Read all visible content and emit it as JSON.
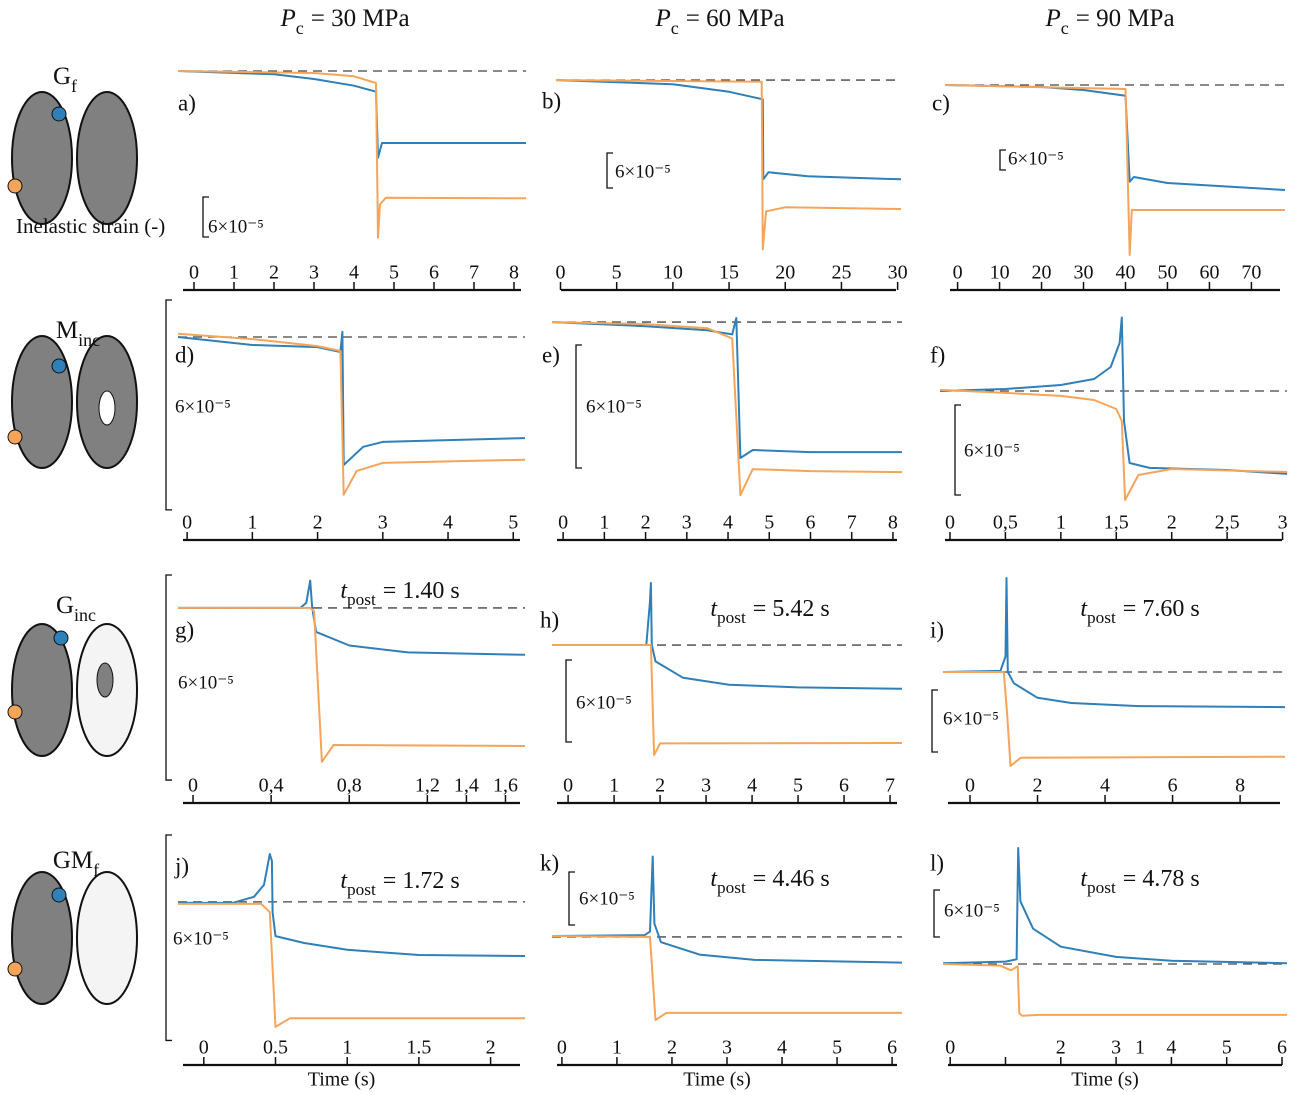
{
  "column_headers": [
    {
      "symbol": "P",
      "subscript": "c",
      "text": "= 30 MPa"
    },
    {
      "symbol": "P",
      "subscript": "c",
      "text": "= 60 MPa"
    },
    {
      "symbol": "P",
      "subscript": "c",
      "text": "= 90 MPa"
    }
  ],
  "row_labels": [
    {
      "symbol": "G",
      "subscript": "f"
    },
    {
      "symbol": "M",
      "subscript": "inc"
    },
    {
      "symbol": "G",
      "subscript": "inc"
    },
    {
      "symbol": "GM",
      "subscript": "f"
    }
  ],
  "y_label": "Inelastic strain (-)",
  "x_label": "Time (s)",
  "chart_data": [
    {
      "type": "line",
      "label": "a)",
      "xlim": [
        -0.4,
        8.3
      ],
      "xticks": [
        0,
        1,
        2,
        3,
        4,
        5,
        6,
        7,
        8
      ],
      "ylim": [
        -0.000291,
        2.4e-05
      ],
      "reference_line": 0,
      "scale_bar": {
        "value": 6e-05,
        "label": "6×10⁻⁵"
      },
      "series": [
        {
          "color": "#2f7fb8",
          "x": [
            -0.4,
            2,
            3,
            4,
            4.55,
            4.6,
            4.7,
            6,
            8.3
          ],
          "values": [
            0,
            -5e-06,
            -1.2e-05,
            -2.2e-05,
            -3.1e-05,
            -0.00013,
            -0.000108,
            -0.000108,
            -0.000108
          ]
        },
        {
          "color": "#f5a55a",
          "x": [
            -0.4,
            3,
            4,
            4.55,
            4.6,
            4.65,
            4.8,
            8.3
          ],
          "values": [
            0,
            -3e-06,
            -8e-06,
            -1.8e-05,
            -0.00025,
            -0.0002,
            -0.00019,
            -0.000191
          ]
        }
      ]
    },
    {
      "type": "line",
      "label": "b)",
      "xlim": [
        -0.4,
        30.3
      ],
      "xticks": [
        0,
        5,
        10,
        15,
        20,
        25,
        30
      ],
      "ylim": [
        -0.000317,
        4.3e-05
      ],
      "reference_line": 0,
      "scale_bar": {
        "value": 6e-05,
        "label": "6×10⁻⁵"
      },
      "series": [
        {
          "color": "#2f7fb8",
          "x": [
            -0.4,
            10,
            15,
            18,
            18.05,
            18.5,
            22,
            30.3
          ],
          "values": [
            0,
            -7e-06,
            -2e-05,
            -3.3e-05,
            -0.00017,
            -0.000158,
            -0.000165,
            -0.00017
          ]
        },
        {
          "color": "#f5a55a",
          "x": [
            -0.4,
            17.9,
            18,
            18.3,
            20,
            30.3
          ],
          "values": [
            0,
            -3e-06,
            -0.00029,
            -0.000225,
            -0.000218,
            -0.000221
          ]
        }
      ]
    },
    {
      "type": "line",
      "label": "c)",
      "xlim": [
        -3,
        78
      ],
      "xticks": [
        0,
        10,
        20,
        30,
        40,
        50,
        60,
        70
      ],
      "ylim": [
        -0.00054,
        9e-05
      ],
      "reference_line": 0,
      "scale_bar": {
        "value": 6e-05,
        "label": "6×10⁻⁵"
      },
      "series": [
        {
          "color": "#2f7fb8",
          "x": [
            -3,
            20,
            30,
            40,
            41,
            42,
            50,
            78
          ],
          "values": [
            0,
            -6e-06,
            -1.5e-05,
            -3.2e-05,
            -0.00029,
            -0.000276,
            -0.000294,
            -0.000315
          ]
        },
        {
          "color": "#f5a55a",
          "x": [
            -3,
            40,
            41,
            41.5,
            78
          ],
          "values": [
            0,
            -1.2e-05,
            -0.00051,
            -0.000375,
            -0.000375
          ]
        }
      ]
    },
    {
      "type": "line",
      "label": "d)",
      "xlim": [
        -0.14,
        5.18
      ],
      "xticks": [
        0,
        1,
        2,
        3,
        4,
        5
      ],
      "ylim": [
        -5.09e-05,
        1.2e-05
      ],
      "reference_line": 0,
      "scale_bar": {
        "value": 6e-05,
        "label": "6×10⁻⁵"
      },
      "series": [
        {
          "color": "#2f7fb8",
          "x": [
            -0.14,
            1,
            2,
            2.35,
            2.38,
            2.4,
            2.7,
            3,
            5.18
          ],
          "values": [
            0,
            -2.3e-06,
            -2.9e-06,
            -4.3e-06,
            1.5e-06,
            -3.66e-05,
            -3.14e-05,
            -3e-05,
            -2.89e-05
          ]
        },
        {
          "color": "#f5a55a",
          "x": [
            -0.14,
            1,
            2,
            2.35,
            2.4,
            2.6,
            3,
            5.18
          ],
          "values": [
            9e-07,
            -6e-07,
            -2.6e-06,
            -4e-06,
            -4.51e-05,
            -3.83e-05,
            -3.6e-05,
            -3.51e-05
          ]
        }
      ]
    },
    {
      "type": "line",
      "label": "e)",
      "xlim": [
        -0.27,
        8.22
      ],
      "xticks": [
        0,
        1,
        2,
        3,
        4,
        5,
        6,
        7,
        8
      ],
      "ylim": [
        -9.41e-05,
        1.32e-05
      ],
      "reference_line": 0,
      "scale_bar": {
        "value": 6e-05,
        "label": "6×10⁻⁵"
      },
      "series": [
        {
          "color": "#2f7fb8",
          "x": [
            -0.27,
            2,
            3.5,
            4.1,
            4.2,
            4.3,
            4.6,
            6,
            8.22
          ],
          "values": [
            0,
            -2e-06,
            -4e-06,
            -6e-06,
            2e-06,
            -6.63e-05,
            -6.24e-05,
            -6.34e-05,
            -6.34e-05
          ]
        },
        {
          "color": "#f5a55a",
          "x": [
            -0.27,
            2,
            3.5,
            4.1,
            4.3,
            4.6,
            6,
            8.22
          ],
          "values": [
            0,
            -1e-06,
            -3e-06,
            -8e-06,
            -8.44e-05,
            -7.17e-05,
            -7.27e-05,
            -7.32e-05
          ]
        }
      ]
    },
    {
      "type": "line",
      "label": "f)",
      "xlim": [
        -0.09,
        3.04
      ],
      "xticks": [
        0,
        {
          "value": 0.5,
          "label": "0,5"
        },
        1,
        {
          "value": 1.5,
          "label": "1,5"
        },
        2,
        {
          "value": 2.5,
          "label": "2,5"
        },
        3
      ],
      "ylim": [
        -8.27e-05,
        6.4e-05
      ],
      "reference_line": 0,
      "scale_bar": {
        "value": 6e-05,
        "label": "6×10⁻⁵"
      },
      "series": [
        {
          "color": "#2f7fb8",
          "x": [
            -0.09,
            0.5,
            1,
            1.3,
            1.45,
            1.53,
            1.55,
            1.57,
            1.62,
            1.8,
            2.5,
            3.04
          ],
          "values": [
            0,
            1.3e-06,
            4e-06,
            8e-06,
            1.6e-05,
            3.2e-05,
            4.9e-05,
            -2e-05,
            -4.8e-05,
            -5.13e-05,
            -5.27e-05,
            -5.53e-05
          ]
        },
        {
          "color": "#f5a55a",
          "x": [
            -0.09,
            0.5,
            1,
            1.3,
            1.5,
            1.55,
            1.58,
            1.7,
            2,
            3.04
          ],
          "values": [
            7e-07,
            -1.3e-06,
            -3.3e-06,
            -6e-06,
            -1.2e-05,
            -2e-05,
            -7.27e-05,
            -5.6e-05,
            -5.2e-05,
            -5.4e-05
          ]
        }
      ]
    },
    {
      "type": "line",
      "label": "g)",
      "xlim": [
        -0.077,
        1.7
      ],
      "xticks": [
        0,
        {
          "value": 0.4,
          "label": "0,4"
        },
        {
          "value": 0.8,
          "label": "0,8"
        },
        {
          "value": 1.2,
          "label": "1,2"
        },
        {
          "value": 1.4,
          "label": "1,4"
        },
        {
          "value": 1.6,
          "label": "1,6"
        }
      ],
      "ylim": [
        -5.18e-05,
        1.11e-05
      ],
      "reference_line": 0,
      "scale_bar": {
        "value": 6e-05,
        "label": "6×10⁻⁵"
      },
      "annotation": {
        "symbol": "t",
        "subscript": "post",
        "text": "= 1.40 s"
      },
      "series": [
        {
          "color": "#2f7fb8",
          "x": [
            -0.077,
            0.55,
            0.58,
            0.6,
            0.61,
            0.63,
            0.8,
            1.1,
            1.7
          ],
          "values": [
            0,
            0,
            1.5e-06,
            8e-06,
            0,
            -7e-06,
            -1.1e-05,
            -1.3e-05,
            -1.37e-05
          ]
        },
        {
          "color": "#f5a55a",
          "x": [
            -0.077,
            0.6,
            0.62,
            0.66,
            0.72,
            1.7
          ],
          "values": [
            0,
            0,
            -1e-06,
            -4.5e-05,
            -4.01e-05,
            -4.04e-05
          ]
        }
      ]
    },
    {
      "type": "line",
      "label": "h)",
      "xlim": [
        -0.35,
        7.26
      ],
      "xticks": [
        0,
        1,
        2,
        3,
        4,
        5,
        6,
        7
      ],
      "ylim": [
        -0.0001024,
        5.49e-05
      ],
      "reference_line": 0,
      "scale_bar": {
        "value": 6e-05,
        "label": "6×10⁻⁵"
      },
      "annotation": {
        "symbol": "t",
        "subscript": "post",
        "text": "= 5.42 s"
      },
      "series": [
        {
          "color": "#2f7fb8",
          "x": [
            -0.35,
            1.7,
            1.78,
            1.8,
            1.82,
            1.9,
            2.5,
            3.5,
            5,
            7.26
          ],
          "values": [
            0,
            0,
            3.2e-05,
            4.54e-05,
            0,
            -1.2e-05,
            -2.4e-05,
            -2.9e-05,
            -3.1e-05,
            -3.2e-05
          ]
        },
        {
          "color": "#f5a55a",
          "x": [
            -0.35,
            1.8,
            1.87,
            2.0,
            7.26
          ],
          "values": [
            0,
            0,
            -8.05e-05,
            -7.2e-05,
            -7.17e-05
          ]
        }
      ]
    },
    {
      "type": "line",
      "label": "i)",
      "xlim": [
        -0.8,
        9.33
      ],
      "xticks": [
        0,
        2,
        4,
        6,
        8
      ],
      "ylim": [
        -0.0001094,
        9.87e-05
      ],
      "reference_line": 0,
      "scale_bar": {
        "value": 6e-05,
        "label": "6×10⁻⁵"
      },
      "annotation": {
        "symbol": "t",
        "subscript": "post",
        "text": "= 7.60 s"
      },
      "series": [
        {
          "color": "#2f7fb8",
          "x": [
            -0.8,
            0.9,
            1.05,
            1.08,
            1.12,
            1.3,
            2,
            3,
            5,
            9.33
          ],
          "values": [
            0,
            1e-06,
            1.5e-05,
            9.1e-05,
            0,
            -1.1e-05,
            -2.5e-05,
            -3e-05,
            -3.3e-05,
            -3.4e-05
          ]
        },
        {
          "color": "#f5a55a",
          "x": [
            -0.8,
            1.0,
            1.1,
            1.2,
            1.5,
            9.33
          ],
          "values": [
            0,
            0,
            -4e-05,
            -9.1e-05,
            -8.3e-05,
            -8.2e-05
          ]
        }
      ]
    },
    {
      "type": "line",
      "label": "j)",
      "xlim": [
        -0.18,
        2.24
      ],
      "xticks": [
        0,
        0.5,
        1,
        1.5,
        2
      ],
      "ylim": [
        -4.18e-05,
        2.1e-05
      ],
      "reference_line": 0,
      "scale_bar": {
        "value": 6e-05,
        "label": "6×10⁻⁵"
      },
      "annotation": {
        "symbol": "t",
        "subscript": "post",
        "text": "= 1.72 s"
      },
      "series": [
        {
          "color": "#2f7fb8",
          "x": [
            -0.18,
            0.2,
            0.35,
            0.42,
            0.46,
            0.475,
            0.48,
            0.5,
            0.7,
            1.0,
            1.5,
            2.24
          ],
          "values": [
            -3e-07,
            -3e-07,
            1.5e-06,
            5e-06,
            1.4e-05,
            1.2e-05,
            -3e-06,
            -1e-05,
            -1.2e-05,
            -1.4e-05,
            -1.55e-05,
            -1.58e-05
          ]
        },
        {
          "color": "#f5a55a",
          "x": [
            -0.18,
            0.4,
            0.46,
            0.5,
            0.6,
            2.24
          ],
          "values": [
            -6e-07,
            -6e-07,
            -3e-06,
            -3.65e-05,
            -3.4e-05,
            -3.4e-05
          ]
        }
      ]
    },
    {
      "type": "line",
      "label": "k)",
      "xlim": [
        -0.18,
        6.18
      ],
      "xticks": [
        0,
        1,
        2,
        3,
        4,
        5,
        6
      ],
      "ylim": [
        -0.0001223,
        0.000121
      ],
      "reference_line": 0,
      "scale_bar": {
        "value": 6e-05,
        "label": "6×10⁻⁵"
      },
      "annotation": {
        "symbol": "t",
        "subscript": "post",
        "text": "= 4.46 s"
      },
      "series": [
        {
          "color": "#2f7fb8",
          "x": [
            -0.18,
            1.5,
            1.6,
            1.65,
            1.68,
            1.8,
            2.5,
            3.5,
            6.18
          ],
          "values": [
            1e-06,
            2e-06,
            6e-06,
            9.1e-05,
            1.5e-05,
            -6e-06,
            -2e-05,
            -2.6e-05,
            -2.9e-05
          ]
        },
        {
          "color": "#f5a55a",
          "x": [
            -0.18,
            1.6,
            1.7,
            1.9,
            6.18
          ],
          "values": [
            1e-06,
            0,
            -9.4e-05,
            -8.6e-05,
            -8.6e-05
          ]
        }
      ]
    },
    {
      "type": "line",
      "label": "l)",
      "xlim": [
        -0.13,
        6.09
      ],
      "xticks": [
        0,
        2,
        3,
        4,
        5,
        6
      ],
      "minor_xticks": [
        1
      ],
      "axis_note": "1",
      "ylim": [
        -0.0001034,
        0.000171
      ],
      "reference_line": 0,
      "scale_bar": {
        "value": 6e-05,
        "label": "6×10⁻⁵"
      },
      "annotation": {
        "symbol": "t",
        "subscript": "post",
        "text": "= 4.78 s"
      },
      "series": [
        {
          "color": "#2f7fb8",
          "x": [
            -0.13,
            1.0,
            1.2,
            1.23,
            1.27,
            1.5,
            2,
            3,
            4,
            6.09
          ],
          "values": [
            1e-06,
            3e-06,
            6e-06,
            0.000148,
            8e-05,
            4.5e-05,
            2.2e-05,
            9e-06,
            4e-06,
            1e-06
          ]
        },
        {
          "color": "#f5a55a",
          "x": [
            -0.13,
            0.9,
            1.1,
            1.22,
            1.25,
            1.3,
            1.6,
            6.09
          ],
          "values": [
            0,
            -2e-06,
            -8e-06,
            -3e-06,
            -6.3e-05,
            -6.6e-05,
            -6.5e-05,
            -6.5e-05
          ]
        }
      ]
    }
  ]
}
